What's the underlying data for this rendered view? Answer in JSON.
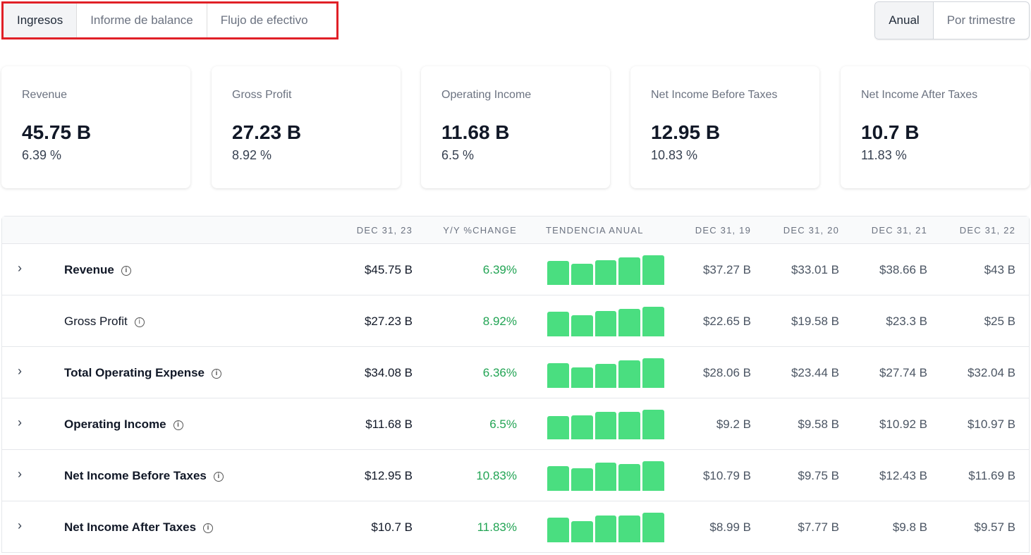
{
  "tabs": [
    "Ingresos",
    "Informe de balance",
    "Flujo de efectivo"
  ],
  "period": [
    "Anual",
    "Por trimestre"
  ],
  "cards": [
    {
      "title": "Revenue",
      "value": "45.75 B",
      "change": "6.39 %"
    },
    {
      "title": "Gross Profit",
      "value": "27.23 B",
      "change": "8.92 %"
    },
    {
      "title": "Operating Income",
      "value": "11.68 B",
      "change": "6.5 %"
    },
    {
      "title": "Net Income Before Taxes",
      "value": "12.95 B",
      "change": "10.83 %"
    },
    {
      "title": "Net Income After Taxes",
      "value": "10.7 B",
      "change": "11.83 %"
    }
  ],
  "table": {
    "headers": [
      "DEC 31, 23",
      "Y/Y %CHANGE",
      "TENDENCIA ANUAL",
      "DEC 31, 19",
      "DEC 31, 20",
      "DEC 31, 21",
      "DEC 31, 22"
    ],
    "trend_color": "#4ade80",
    "rows": [
      {
        "label": "Revenue",
        "bold": true,
        "expand": true,
        "current": "$45.75 B",
        "change": "6.39%",
        "hist": [
          "$37.27 B",
          "$33.01 B",
          "$38.66 B",
          "$43 B"
        ],
        "trend": [
          37.27,
          33.01,
          38.66,
          43,
          45.75
        ]
      },
      {
        "label": "Gross Profit",
        "bold": false,
        "expand": false,
        "current": "$27.23 B",
        "change": "8.92%",
        "hist": [
          "$22.65 B",
          "$19.58 B",
          "$23.3 B",
          "$25 B"
        ],
        "trend": [
          22.65,
          19.58,
          23.3,
          25,
          27.23
        ]
      },
      {
        "label": "Total Operating Expense",
        "bold": true,
        "expand": true,
        "current": "$34.08 B",
        "change": "6.36%",
        "hist": [
          "$28.06 B",
          "$23.44 B",
          "$27.74 B",
          "$32.04 B"
        ],
        "trend": [
          28.06,
          23.44,
          27.74,
          32.04,
          34.08
        ]
      },
      {
        "label": "Operating Income",
        "bold": true,
        "expand": true,
        "current": "$11.68 B",
        "change": "6.5%",
        "hist": [
          "$9.2 B",
          "$9.58 B",
          "$10.92 B",
          "$10.97 B"
        ],
        "trend": [
          9.2,
          9.58,
          10.92,
          10.97,
          11.68
        ]
      },
      {
        "label": "Net Income Before Taxes",
        "bold": true,
        "expand": true,
        "current": "$12.95 B",
        "change": "10.83%",
        "hist": [
          "$10.79 B",
          "$9.75 B",
          "$12.43 B",
          "$11.69 B"
        ],
        "trend": [
          10.79,
          9.75,
          12.43,
          11.69,
          12.95
        ]
      },
      {
        "label": "Net Income After Taxes",
        "bold": true,
        "expand": true,
        "current": "$10.7 B",
        "change": "11.83%",
        "hist": [
          "$8.99 B",
          "$7.77 B",
          "$9.8 B",
          "$9.57 B"
        ],
        "trend": [
          8.99,
          7.77,
          9.8,
          9.57,
          10.7
        ]
      }
    ]
  }
}
